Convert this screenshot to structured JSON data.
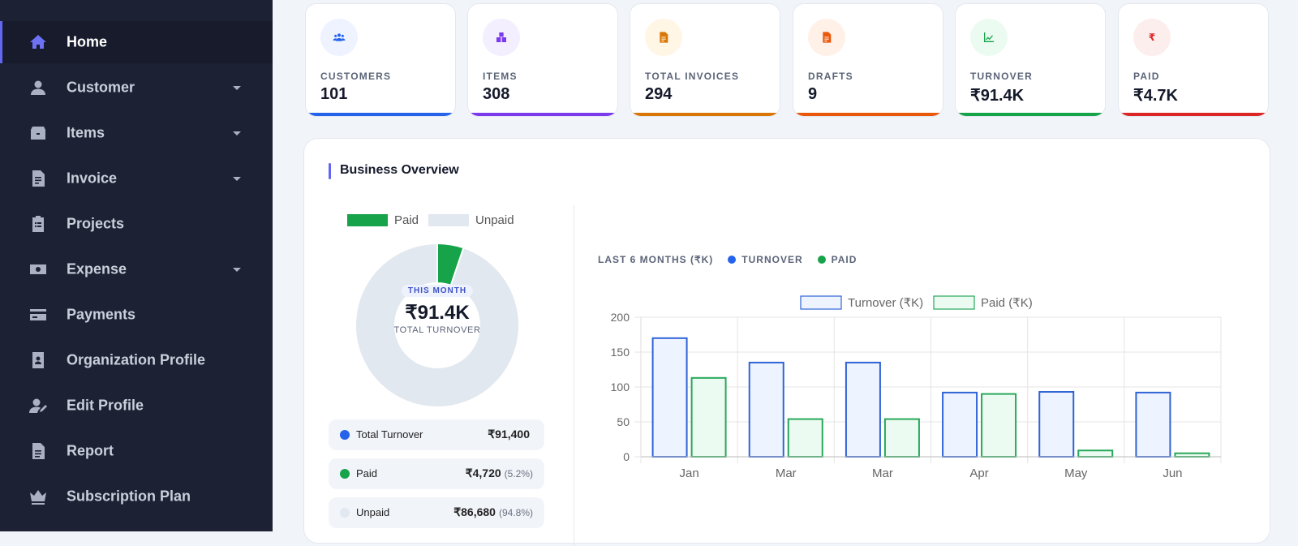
{
  "sidebar": {
    "items": [
      {
        "label": "Home",
        "icon": "home-icon",
        "active": true,
        "caret": false
      },
      {
        "label": "Customer",
        "icon": "user-icon",
        "active": false,
        "caret": true
      },
      {
        "label": "Items",
        "icon": "box-icon",
        "active": false,
        "caret": true
      },
      {
        "label": "Invoice",
        "icon": "invoice-icon",
        "active": false,
        "caret": true
      },
      {
        "label": "Projects",
        "icon": "clipboard-icon",
        "active": false,
        "caret": false
      },
      {
        "label": "Expense",
        "icon": "money-icon",
        "active": false,
        "caret": true
      },
      {
        "label": "Payments",
        "icon": "card-icon",
        "active": false,
        "caret": false
      },
      {
        "label": "Organization Profile",
        "icon": "id-badge-icon",
        "active": false,
        "caret": false
      },
      {
        "label": "Edit Profile",
        "icon": "user-edit-icon",
        "active": false,
        "caret": false
      },
      {
        "label": "Report",
        "icon": "report-icon",
        "active": false,
        "caret": false
      },
      {
        "label": "Subscription Plan",
        "icon": "crown-icon",
        "active": false,
        "caret": false
      }
    ]
  },
  "stats": [
    {
      "label": "CUSTOMERS",
      "value": "101",
      "icon": "users-icon",
      "color": "#2563eb",
      "icon_bg": "#eef3ff"
    },
    {
      "label": "ITEMS",
      "value": "308",
      "icon": "boxes-icon",
      "color": "#7c3aed",
      "icon_bg": "#f3efff"
    },
    {
      "label": "TOTAL INVOICES",
      "value": "294",
      "icon": "file-invoice-icon",
      "color": "#d97706",
      "icon_bg": "#fff6e6"
    },
    {
      "label": "DRAFTS",
      "value": "9",
      "icon": "draft-file-icon",
      "color": "#ea580c",
      "icon_bg": "#fff1e8"
    },
    {
      "label": "TURNOVER",
      "value": "₹91.4K",
      "icon": "trend-up-icon",
      "color": "#16a34a",
      "icon_bg": "#ecfbf1"
    },
    {
      "label": "PAID",
      "value": "₹4.7K",
      "icon": "rupee-icon",
      "color": "#dc2626",
      "icon_bg": "#fdeeee"
    }
  ],
  "overview": {
    "title": "Business Overview",
    "donut": {
      "legend": [
        "Paid",
        "Unpaid"
      ],
      "paid_fraction": 0.052,
      "paid_color": "#16a34a",
      "unpaid_color": "#e2e8f0",
      "badge": "THIS MONTH",
      "value": "₹91.4K",
      "sublabel": "TOTAL TURNOVER"
    },
    "summary": [
      {
        "label": "Total Turnover",
        "value": "₹91,400",
        "pct": "",
        "color": "#2563eb"
      },
      {
        "label": "Paid",
        "value": "₹4,720",
        "pct": "(5.2%)",
        "color": "#16a34a"
      },
      {
        "label": "Unpaid",
        "value": "₹86,680",
        "pct": "(94.8%)",
        "color": "#e2e8f0"
      }
    ],
    "chart_header": {
      "title": "LAST 6 MONTHS (₹K)",
      "turnover": "TURNOVER",
      "paid": "PAID"
    }
  },
  "chart_data": {
    "type": "bar",
    "categories": [
      "Jan",
      "Mar",
      "Mar",
      "Apr",
      "May",
      "Jun"
    ],
    "series": [
      {
        "name": "Turnover (₹K)",
        "values": [
          170,
          135,
          135,
          92,
          93,
          92
        ],
        "stroke": "#2f63d6",
        "fill": "#eef4ff"
      },
      {
        "name": "Paid (₹K)",
        "values": [
          113,
          54,
          54,
          90,
          9,
          5
        ],
        "stroke": "#27a85a",
        "fill": "#ecfbf1"
      }
    ],
    "yticks": [
      0,
      50,
      100,
      150,
      200
    ],
    "ylim": [
      0,
      200
    ],
    "grid": true,
    "legend": "top"
  }
}
